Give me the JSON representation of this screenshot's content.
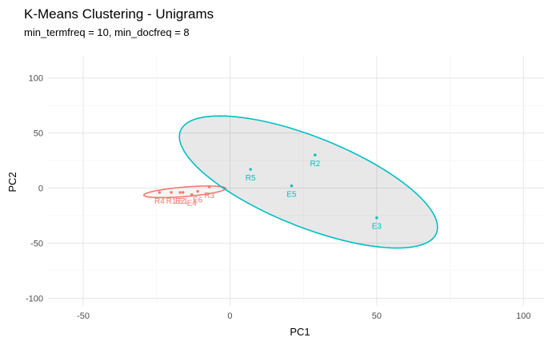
{
  "chart_data": {
    "type": "scatter",
    "title": "K-Means Clustering - Unigrams",
    "subtitle": "min_termfreq = 10, min_docfreq = 8",
    "xlabel": "PC1",
    "ylabel": "PC2",
    "xlim": [
      -62,
      107
    ],
    "ylim": [
      -107,
      120
    ],
    "x_ticks": [
      -50,
      0,
      50,
      100
    ],
    "y_ticks": [
      100,
      50,
      0,
      -50,
      -100
    ],
    "grid": true,
    "legend": "none",
    "clusters": [
      {
        "color": "#F8766D",
        "points": [
          {
            "label": "R4",
            "x": -24,
            "y": -4
          },
          {
            "label": "R1",
            "x": -20,
            "y": -4
          },
          {
            "label": "E2",
            "x": -17,
            "y": -4
          },
          {
            "label": "E1",
            "x": -16,
            "y": -4
          },
          {
            "label": "E4",
            "x": -13,
            "y": -6
          },
          {
            "label": "E6",
            "x": -11,
            "y": -3
          },
          {
            "label": "R3",
            "x": -7,
            "y": 1
          }
        ]
      },
      {
        "color": "#00BFC4",
        "points": [
          {
            "label": "R5",
            "x": 7,
            "y": 17
          },
          {
            "label": "R2",
            "x": 29,
            "y": 30
          },
          {
            "label": "E5",
            "x": 21,
            "y": 2
          },
          {
            "label": "E3",
            "x": 50,
            "y": -27
          }
        ]
      }
    ]
  }
}
